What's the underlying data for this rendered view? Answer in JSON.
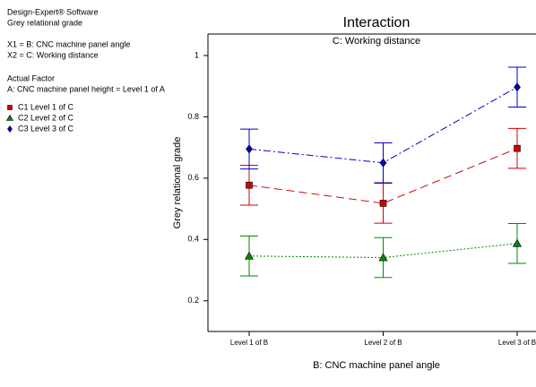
{
  "chart_data": {
    "type": "line",
    "title": "Interaction",
    "subtitle": "C: Working distance",
    "annotations": [
      "Design-Expert® Software",
      "Grey relational grade",
      "X1 = B: CNC machine panel angle",
      "X2 = C: Working distance",
      "Actual Factor",
      "A: CNC machine panel height = Level 1 of A"
    ],
    "x_label": "B: CNC machine panel angle",
    "y_label": "Grey relational grade",
    "categories": [
      "Level 1 of B",
      "Level 2 of B",
      "Level 3 of B"
    ],
    "series": [
      {
        "name": "C1 Level 1 of C",
        "color": "#d40000",
        "marker": "square",
        "dash": "9 5",
        "values": [
          0.577,
          0.518,
          0.697
        ],
        "errors": [
          0.065,
          0.065,
          0.065
        ]
      },
      {
        "name": "C2 Level 2 of C",
        "color": "#008a00",
        "marker": "triangle",
        "dash": "2 2",
        "values": [
          0.346,
          0.341,
          0.387
        ],
        "errors": [
          0.065,
          0.065,
          0.065
        ]
      },
      {
        "name": "C3 Level 3 of C",
        "color": "#0000cc",
        "marker": "diamond",
        "dash": "8 3 2 3",
        "values": [
          0.695,
          0.65,
          0.897
        ],
        "errors": [
          0.065,
          0.065,
          0.065
        ]
      }
    ],
    "ylim": [
      0.1,
      1.07
    ],
    "yticks": [
      0.2,
      0.4,
      0.6,
      0.8,
      1
    ],
    "grid": false
  }
}
